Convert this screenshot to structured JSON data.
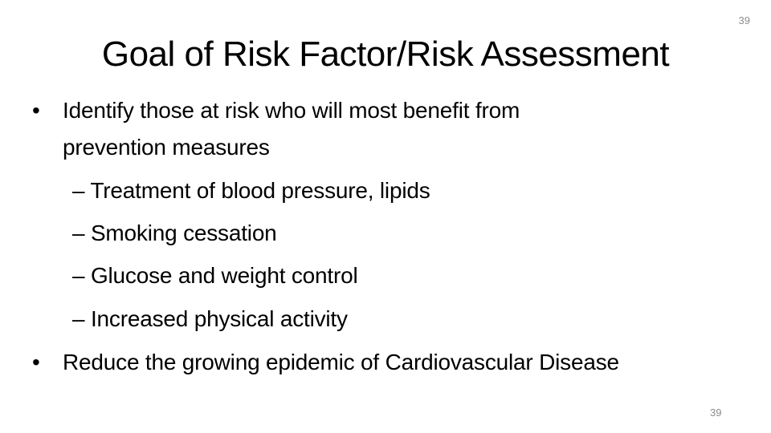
{
  "slide_number": "39",
  "title": "Goal of Risk Factor/Risk Assessment",
  "bullets": [
    {
      "marker": "•",
      "text_line1": "Identify those at risk who will most benefit from",
      "text_line2": "prevention measures"
    },
    {
      "marker": "•",
      "text": "Reduce the growing epidemic of Cardiovascular Disease"
    }
  ],
  "sub_bullets": [
    "– Treatment of blood pressure, lipids",
    "– Smoking cessation",
    "– Glucose and weight control",
    "– Increased physical activity"
  ]
}
